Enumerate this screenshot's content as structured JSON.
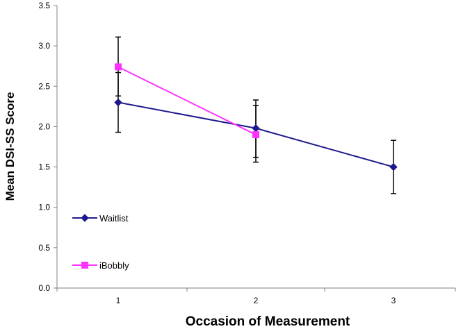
{
  "chart_data": {
    "type": "line",
    "title": "",
    "xlabel": "Occasion of Measurement",
    "ylabel": "Mean DSI-SS Score",
    "categories": [
      "1",
      "2",
      "3"
    ],
    "ylim": [
      0,
      3.5
    ],
    "yticks": [
      "0.0",
      "0.5",
      "1.0",
      "1.5",
      "2.0",
      "2.5",
      "3.0",
      "3.5"
    ],
    "ytick_values": [
      0,
      0.5,
      1.0,
      1.5,
      2.0,
      2.5,
      3.0,
      3.5
    ],
    "grid": false,
    "legend_position": "left",
    "series": [
      {
        "name": "Waitlist",
        "color": "#1f1a8c",
        "marker": "diamond",
        "values": [
          2.3,
          1.98,
          1.5
        ],
        "error_low": [
          1.93,
          1.62,
          1.17
        ],
        "error_high": [
          2.67,
          2.33,
          1.83
        ]
      },
      {
        "name": "iBobbly",
        "color": "#ff33ff",
        "marker": "square",
        "values": [
          2.74,
          1.9,
          null
        ],
        "error_low": [
          2.38,
          1.56,
          null
        ],
        "error_high": [
          3.11,
          2.26,
          null
        ]
      }
    ]
  }
}
